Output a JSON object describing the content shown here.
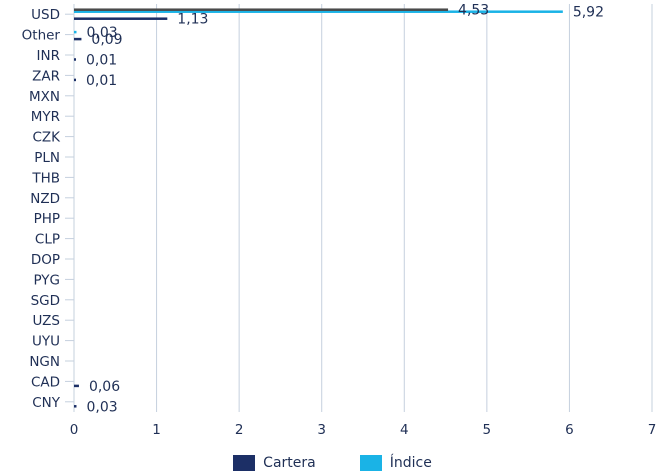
{
  "chart_data": {
    "type": "bar",
    "orientation": "horizontal",
    "categories": [
      "USD",
      "Other",
      "INR",
      "ZAR",
      "MXN",
      "MYR",
      "CZK",
      "PLN",
      "THB",
      "NZD",
      "PHP",
      "CLP",
      "DOP",
      "PYG",
      "SGD",
      "UZS",
      "UYU",
      "NGN",
      "CAD",
      "CNY"
    ],
    "series": [
      {
        "name": "Cartera",
        "color": "#1c2f66",
        "values": [
          1.13,
          0.09,
          0.01,
          0.01,
          null,
          null,
          null,
          null,
          null,
          null,
          null,
          null,
          null,
          null,
          null,
          null,
          null,
          null,
          0.06,
          0.03
        ],
        "labels": [
          "1,13",
          "0,09",
          "0,01",
          "0,01",
          "",
          "",
          "",
          "",
          "",
          "",
          "",
          "",
          "",
          "",
          "",
          "",
          "",
          "",
          "0,06",
          "0,03"
        ]
      },
      {
        "name": "Índice",
        "color": "#1ab3e6",
        "values": [
          5.92,
          0.03,
          null,
          null,
          null,
          null,
          null,
          null,
          null,
          null,
          null,
          null,
          null,
          null,
          null,
          null,
          null,
          null,
          null,
          null
        ],
        "labels": [
          "5,92",
          "0,03",
          "",
          "",
          "",
          "",
          "",
          "",
          "",
          "",
          "",
          "",
          "",
          "",
          "",
          "",
          "",
          "",
          "",
          ""
        ]
      },
      {
        "name": "",
        "color": "#4a4a4a",
        "values": [
          4.53,
          null,
          null,
          null,
          null,
          null,
          null,
          null,
          null,
          null,
          null,
          null,
          null,
          null,
          null,
          null,
          null,
          null,
          null,
          null
        ],
        "labels": [
          "4,53",
          "",
          "",
          "",
          "",
          "",
          "",
          "",
          "",
          "",
          "",
          "",
          "",
          "",
          "",
          "",
          "",
          "",
          "",
          ""
        ]
      }
    ],
    "xlim": [
      0,
      7
    ],
    "xticks": [
      "0",
      "1",
      "2",
      "3",
      "4",
      "5",
      "6",
      "7"
    ],
    "grid": true,
    "legend": "bottom-center",
    "title": "",
    "xlabel": "",
    "ylabel": ""
  }
}
